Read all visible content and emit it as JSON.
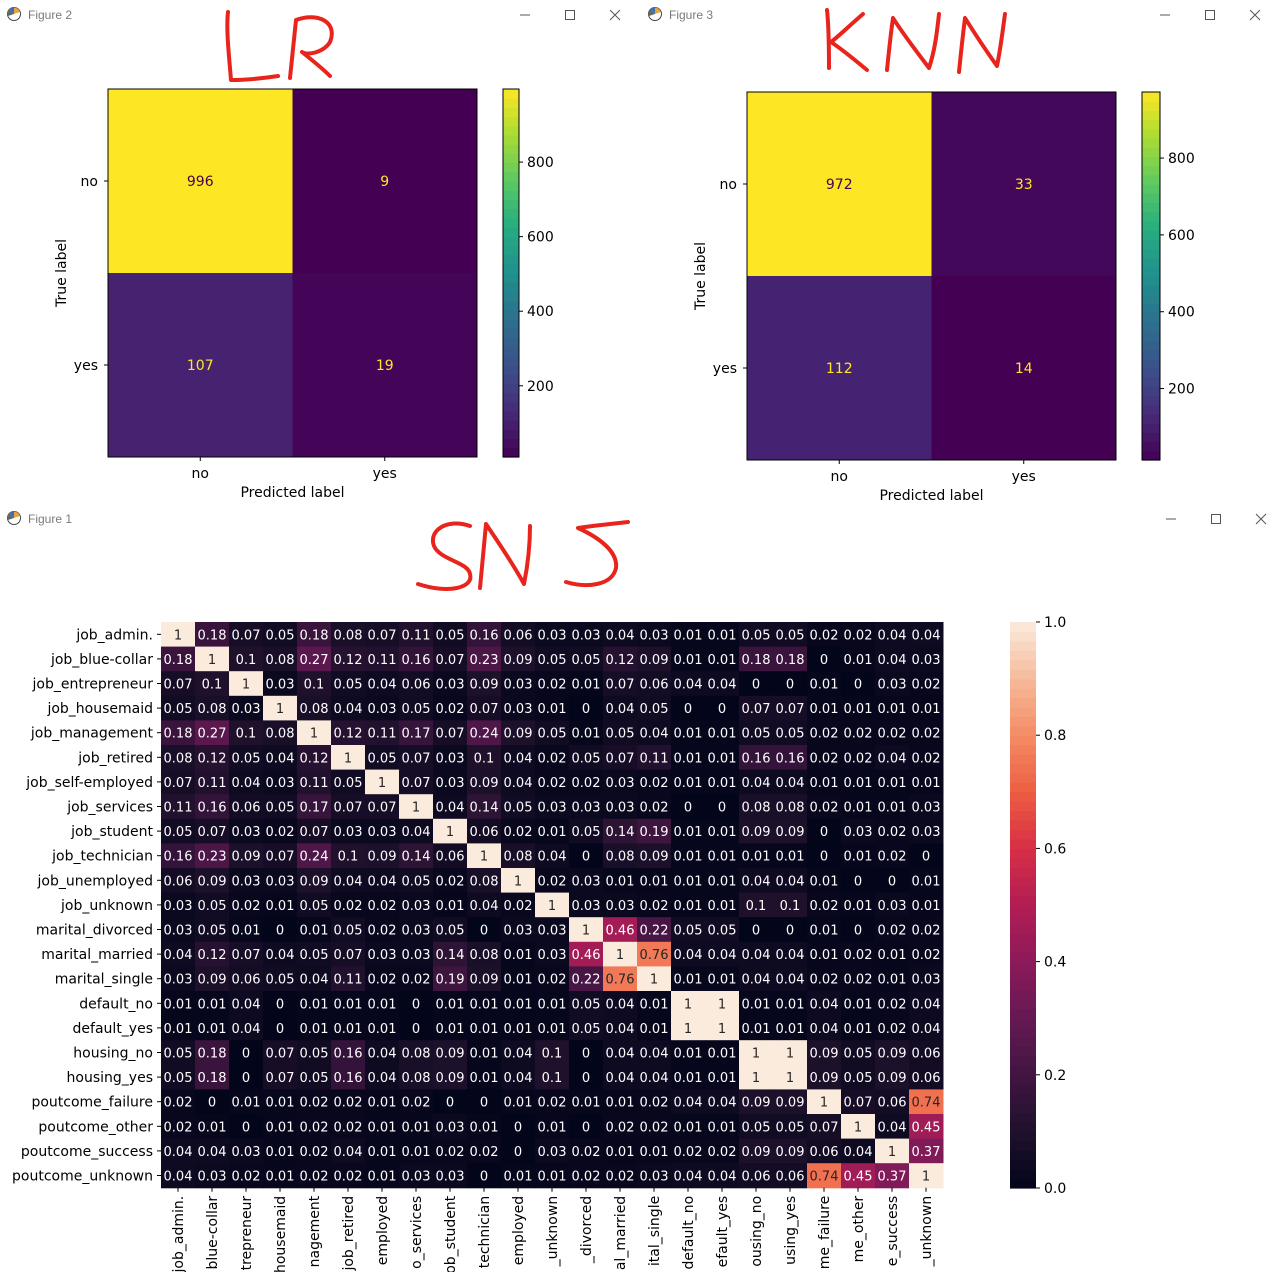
{
  "windows": {
    "figure2": {
      "title": "Figure 2",
      "annotation": "LR"
    },
    "figure3": {
      "title": "Figure 3",
      "annotation": "KNN"
    },
    "figure1": {
      "title": "Figure 1",
      "annotation": "SNS"
    }
  },
  "chart_data": [
    {
      "type": "heatmap",
      "chart": "confusion-matrix-lr",
      "xlabel": "Predicted label",
      "ylabel": "True label",
      "x_categories": [
        "no",
        "yes"
      ],
      "y_categories": [
        "no",
        "yes"
      ],
      "values": [
        [
          996,
          9
        ],
        [
          107,
          19
        ]
      ],
      "colormap": "viridis",
      "colorbar_ticks": [
        200,
        400,
        600,
        800
      ],
      "colorbar_range": [
        9,
        996
      ]
    },
    {
      "type": "heatmap",
      "chart": "confusion-matrix-knn",
      "xlabel": "Predicted label",
      "ylabel": "True label",
      "x_categories": [
        "no",
        "yes"
      ],
      "y_categories": [
        "no",
        "yes"
      ],
      "values": [
        [
          972,
          33
        ],
        [
          112,
          14
        ]
      ],
      "colormap": "viridis",
      "colorbar_ticks": [
        200,
        400,
        600,
        800
      ],
      "colorbar_range": [
        14,
        972
      ]
    },
    {
      "type": "heatmap",
      "chart": "correlation-matrix",
      "colormap": "rocket",
      "colorbar_ticks": [
        0.0,
        0.2,
        0.4,
        0.6,
        0.8,
        1.0
      ],
      "colorbar_range": [
        0,
        1
      ],
      "y_labels": [
        "job_admin.",
        "job_blue-collar",
        "job_entrepreneur",
        "job_housemaid",
        "job_management",
        "job_retired",
        "job_self-employed",
        "job_services",
        "job_student",
        "job_technician",
        "job_unemployed",
        "job_unknown",
        "marital_divorced",
        "marital_married",
        "marital_single",
        "default_no",
        "default_yes",
        "housing_no",
        "housing_yes",
        "poutcome_failure",
        "poutcome_other",
        "poutcome_success",
        "poutcome_unknown"
      ],
      "x_tick_labels": [
        "job_admin.",
        "blue-collar",
        "trepreneur",
        "housemaid",
        "nagement",
        "job_retired",
        "employed",
        "o_services",
        "job_student",
        "technician",
        "employed",
        "_unknown",
        "_divorced",
        "al_married",
        "ital_single",
        "default_no",
        "efault_yes",
        "ousing_no",
        "using_yes",
        "me_failure",
        "me_other",
        "e_success",
        "_unknown"
      ],
      "values": [
        [
          "1",
          "0.18",
          "0.07",
          "0.05",
          "0.18",
          "0.08",
          "0.07",
          "0.11",
          "0.05",
          "0.16",
          "0.06",
          "0.03",
          "0.03",
          "0.04",
          "0.03",
          "0.01",
          "0.01",
          "0.05",
          "0.05",
          "0.02",
          "0.02",
          "0.04",
          "0.04"
        ],
        [
          "0.18",
          "1",
          "0.1",
          "0.08",
          "0.27",
          "0.12",
          "0.11",
          "0.16",
          "0.07",
          "0.23",
          "0.09",
          "0.05",
          "0.05",
          "0.12",
          "0.09",
          "0.01",
          "0.01",
          "0.18",
          "0.18",
          "0",
          "0.01",
          "0.04",
          "0.03"
        ],
        [
          "0.07",
          "0.1",
          "1",
          "0.03",
          "0.1",
          "0.05",
          "0.04",
          "0.06",
          "0.03",
          "0.09",
          "0.03",
          "0.02",
          "0.01",
          "0.07",
          "0.06",
          "0.04",
          "0.04",
          "0",
          "0",
          "0.01",
          "0",
          "0.03",
          "0.02"
        ],
        [
          "0.05",
          "0.08",
          "0.03",
          "1",
          "0.08",
          "0.04",
          "0.03",
          "0.05",
          "0.02",
          "0.07",
          "0.03",
          "0.01",
          "0",
          "0.04",
          "0.05",
          "0",
          "0",
          "0.07",
          "0.07",
          "0.01",
          "0.01",
          "0.01",
          "0.01"
        ],
        [
          "0.18",
          "0.27",
          "0.1",
          "0.08",
          "1",
          "0.12",
          "0.11",
          "0.17",
          "0.07",
          "0.24",
          "0.09",
          "0.05",
          "0.01",
          "0.05",
          "0.04",
          "0.01",
          "0.01",
          "0.05",
          "0.05",
          "0.02",
          "0.02",
          "0.02",
          "0.02"
        ],
        [
          "0.08",
          "0.12",
          "0.05",
          "0.04",
          "0.12",
          "1",
          "0.05",
          "0.07",
          "0.03",
          "0.1",
          "0.04",
          "0.02",
          "0.05",
          "0.07",
          "0.11",
          "0.01",
          "0.01",
          "0.16",
          "0.16",
          "0.02",
          "0.02",
          "0.04",
          "0.02"
        ],
        [
          "0.07",
          "0.11",
          "0.04",
          "0.03",
          "0.11",
          "0.05",
          "1",
          "0.07",
          "0.03",
          "0.09",
          "0.04",
          "0.02",
          "0.02",
          "0.03",
          "0.02",
          "0.01",
          "0.01",
          "0.04",
          "0.04",
          "0.01",
          "0.01",
          "0.01",
          "0.01"
        ],
        [
          "0.11",
          "0.16",
          "0.06",
          "0.05",
          "0.17",
          "0.07",
          "0.07",
          "1",
          "0.04",
          "0.14",
          "0.05",
          "0.03",
          "0.03",
          "0.03",
          "0.02",
          "0",
          "0",
          "0.08",
          "0.08",
          "0.02",
          "0.01",
          "0.01",
          "0.03"
        ],
        [
          "0.05",
          "0.07",
          "0.03",
          "0.02",
          "0.07",
          "0.03",
          "0.03",
          "0.04",
          "1",
          "0.06",
          "0.02",
          "0.01",
          "0.05",
          "0.14",
          "0.19",
          "0.01",
          "0.01",
          "0.09",
          "0.09",
          "0",
          "0.03",
          "0.02",
          "0.03"
        ],
        [
          "0.16",
          "0.23",
          "0.09",
          "0.07",
          "0.24",
          "0.1",
          "0.09",
          "0.14",
          "0.06",
          "1",
          "0.08",
          "0.04",
          "0",
          "0.08",
          "0.09",
          "0.01",
          "0.01",
          "0.01",
          "0.01",
          "0",
          "0.01",
          "0.02",
          "0"
        ],
        [
          "0.06",
          "0.09",
          "0.03",
          "0.03",
          "0.09",
          "0.04",
          "0.04",
          "0.05",
          "0.02",
          "0.08",
          "1",
          "0.02",
          "0.03",
          "0.01",
          "0.01",
          "0.01",
          "0.01",
          "0.04",
          "0.04",
          "0.01",
          "0",
          "0",
          "0.01"
        ],
        [
          "0.03",
          "0.05",
          "0.02",
          "0.01",
          "0.05",
          "0.02",
          "0.02",
          "0.03",
          "0.01",
          "0.04",
          "0.02",
          "1",
          "0.03",
          "0.03",
          "0.02",
          "0.01",
          "0.01",
          "0.1",
          "0.1",
          "0.02",
          "0.01",
          "0.03",
          "0.01"
        ],
        [
          "0.03",
          "0.05",
          "0.01",
          "0",
          "0.01",
          "0.05",
          "0.02",
          "0.03",
          "0.05",
          "0",
          "0.03",
          "0.03",
          "1",
          "0.46",
          "0.22",
          "0.05",
          "0.05",
          "0",
          "0",
          "0.01",
          "0",
          "0.02",
          "0.02"
        ],
        [
          "0.04",
          "0.12",
          "0.07",
          "0.04",
          "0.05",
          "0.07",
          "0.03",
          "0.03",
          "0.14",
          "0.08",
          "0.01",
          "0.03",
          "0.46",
          "1",
          "0.76",
          "0.04",
          "0.04",
          "0.04",
          "0.04",
          "0.01",
          "0.02",
          "0.01",
          "0.02"
        ],
        [
          "0.03",
          "0.09",
          "0.06",
          "0.05",
          "0.04",
          "0.11",
          "0.02",
          "0.02",
          "0.19",
          "0.09",
          "0.01",
          "0.02",
          "0.22",
          "0.76",
          "1",
          "0.01",
          "0.01",
          "0.04",
          "0.04",
          "0.02",
          "0.02",
          "0.01",
          "0.03"
        ],
        [
          "0.01",
          "0.01",
          "0.04",
          "0",
          "0.01",
          "0.01",
          "0.01",
          "0",
          "0.01",
          "0.01",
          "0.01",
          "0.01",
          "0.05",
          "0.04",
          "0.01",
          "1",
          "1",
          "0.01",
          "0.01",
          "0.04",
          "0.01",
          "0.02",
          "0.04"
        ],
        [
          "0.01",
          "0.01",
          "0.04",
          "0",
          "0.01",
          "0.01",
          "0.01",
          "0",
          "0.01",
          "0.01",
          "0.01",
          "0.01",
          "0.05",
          "0.04",
          "0.01",
          "1",
          "1",
          "0.01",
          "0.01",
          "0.04",
          "0.01",
          "0.02",
          "0.04"
        ],
        [
          "0.05",
          "0.18",
          "0",
          "0.07",
          "0.05",
          "0.16",
          "0.04",
          "0.08",
          "0.09",
          "0.01",
          "0.04",
          "0.1",
          "0",
          "0.04",
          "0.04",
          "0.01",
          "0.01",
          "1",
          "1",
          "0.09",
          "0.05",
          "0.09",
          "0.06"
        ],
        [
          "0.05",
          "0.18",
          "0",
          "0.07",
          "0.05",
          "0.16",
          "0.04",
          "0.08",
          "0.09",
          "0.01",
          "0.04",
          "0.1",
          "0",
          "0.04",
          "0.04",
          "0.01",
          "0.01",
          "1",
          "1",
          "0.09",
          "0.05",
          "0.09",
          "0.06"
        ],
        [
          "0.02",
          "0",
          "0.01",
          "0.01",
          "0.02",
          "0.02",
          "0.01",
          "0.02",
          "0",
          "0",
          "0.01",
          "0.02",
          "0.01",
          "0.01",
          "0.02",
          "0.04",
          "0.04",
          "0.09",
          "0.09",
          "1",
          "0.07",
          "0.06",
          "0.74"
        ],
        [
          "0.02",
          "0.01",
          "0",
          "0.01",
          "0.02",
          "0.02",
          "0.01",
          "0.01",
          "0.03",
          "0.01",
          "0",
          "0.01",
          "0",
          "0.02",
          "0.02",
          "0.01",
          "0.01",
          "0.05",
          "0.05",
          "0.07",
          "1",
          "0.04",
          "0.45"
        ],
        [
          "0.04",
          "0.04",
          "0.03",
          "0.01",
          "0.02",
          "0.04",
          "0.01",
          "0.01",
          "0.02",
          "0.02",
          "0",
          "0.03",
          "0.02",
          "0.01",
          "0.01",
          "0.02",
          "0.02",
          "0.09",
          "0.09",
          "0.06",
          "0.04",
          "1",
          "0.37"
        ],
        [
          "0.04",
          "0.03",
          "0.02",
          "0.01",
          "0.02",
          "0.02",
          "0.01",
          "0.03",
          "0.03",
          "0",
          "0.01",
          "0.01",
          "0.02",
          "0.02",
          "0.03",
          "0.04",
          "0.04",
          "0.06",
          "0.06",
          "0.74",
          "0.45",
          "0.37",
          "1"
        ]
      ]
    }
  ]
}
